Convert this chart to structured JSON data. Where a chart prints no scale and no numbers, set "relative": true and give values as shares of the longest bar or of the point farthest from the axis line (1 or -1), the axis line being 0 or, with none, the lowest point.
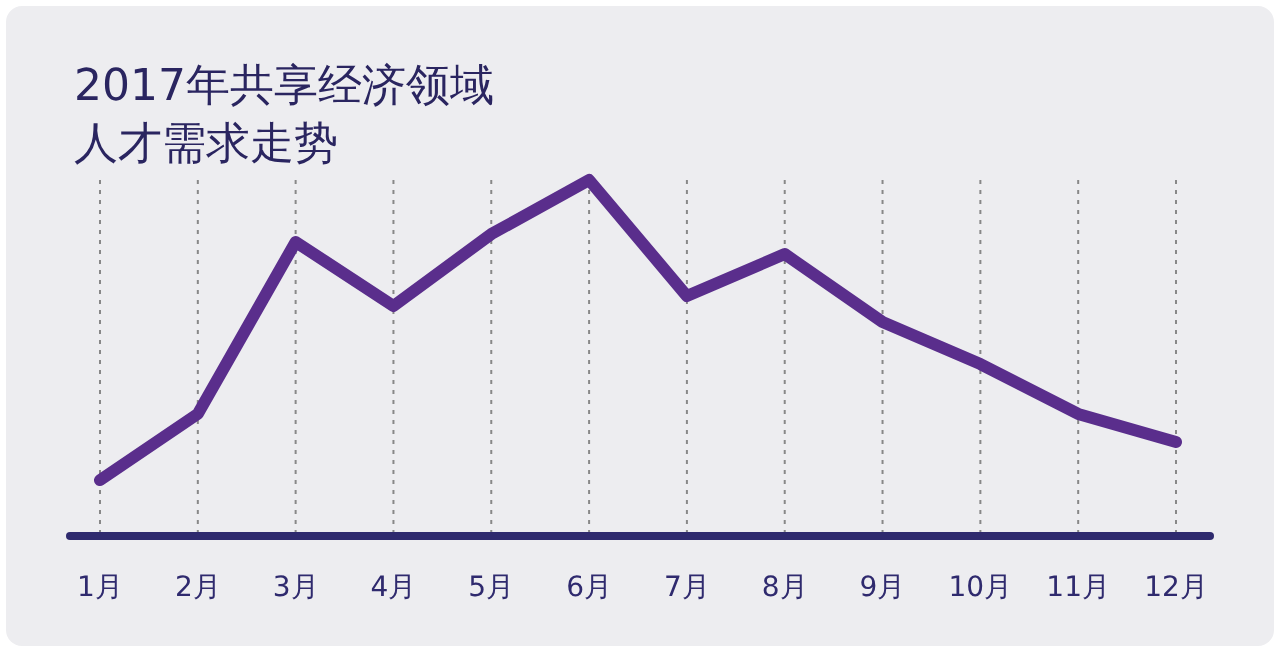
{
  "chart_data": {
    "type": "line",
    "title": "2017年共享经济领域人才需求走势",
    "relative": true,
    "grid": "x",
    "categories": [
      "1月",
      "2月",
      "3月",
      "4月",
      "5月",
      "6月",
      "7月",
      "8月",
      "9月",
      "10月",
      "11月",
      "12月"
    ],
    "series": [
      {
        "color": "#5a2e8c",
        "values": [
          0.157,
          0.343,
          0.826,
          0.646,
          0.848,
          1,
          0.674,
          0.792,
          0.601,
          0.483,
          0.343,
          0.264
        ]
      }
    ]
  }
}
